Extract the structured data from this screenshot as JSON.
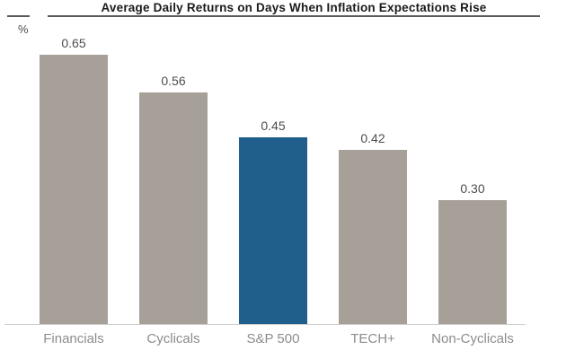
{
  "chart_data": {
    "type": "bar",
    "title": "Average Daily Returns on Days When Inflation Expectations Rise",
    "ylabel": "%",
    "xlabel": "",
    "categories": [
      "Financials",
      "Cyclicals",
      "S&P 500",
      "TECH+",
      "Non-Cyclicals"
    ],
    "values": [
      0.65,
      0.56,
      0.45,
      0.42,
      0.3
    ],
    "value_labels": [
      "0.65",
      "0.56",
      "0.45",
      "0.42",
      "0.30"
    ],
    "highlight_category": "S&P 500",
    "ylim": [
      0,
      0.75
    ],
    "grid": false,
    "legend": false,
    "colors": {
      "bar_default": "#A7A098",
      "bar_highlight": "#205E8C",
      "title_text": "#1A1A1A",
      "rule_line": "#595959",
      "value_text": "#4D4D4D",
      "category_text": "#8C8C8C",
      "unit_text": "#4D4D4D",
      "axis_line": "#CCCCCC",
      "background": "#FFFFFF"
    }
  }
}
